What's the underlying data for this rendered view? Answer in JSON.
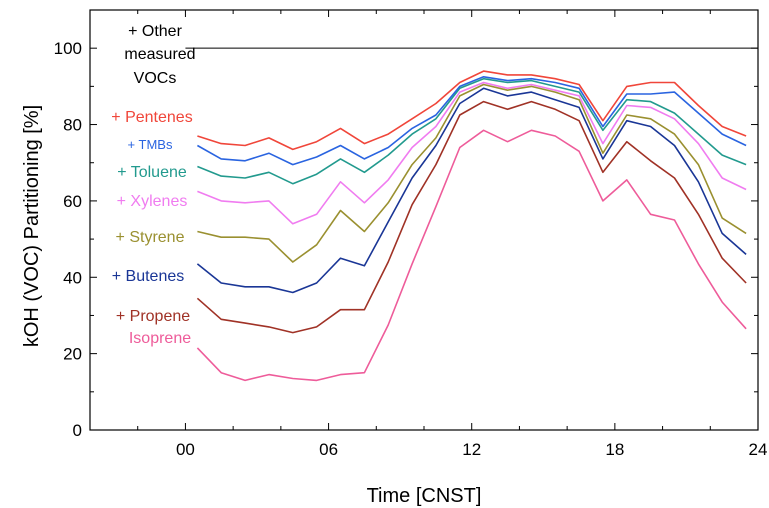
{
  "chart_data": {
    "type": "line",
    "xlabel": "Time [CNST]",
    "ylabel": "kOH (VOC) Partitioning [%]",
    "xlim": [
      -4,
      24
    ],
    "ylim": [
      0,
      110
    ],
    "xticks": [
      0,
      6,
      12,
      18,
      24
    ],
    "xtick_labels": [
      "00",
      "06",
      "12",
      "18",
      "24"
    ],
    "yticks": [
      0,
      20,
      40,
      60,
      80,
      100
    ],
    "ytick_labels": [
      "0",
      "20",
      "40",
      "60",
      "80",
      "100"
    ],
    "x": [
      0.5,
      1.5,
      2.5,
      3.5,
      4.5,
      5.5,
      6.5,
      7.5,
      8.5,
      9.5,
      10.5,
      11.5,
      12.5,
      13.5,
      14.5,
      15.5,
      16.5,
      17.5,
      18.5,
      19.5,
      20.5,
      21.5,
      22.5,
      23.5
    ],
    "reference_line": {
      "y": 100,
      "x_start": 0.0,
      "label_lines": [
        "+ Other",
        "measured",
        "VOCs"
      ]
    },
    "series": [
      {
        "name": "Isoprene",
        "label": "Isoprene",
        "color": "#ee5c9a",
        "values": [
          21.5,
          15.0,
          13.0,
          14.5,
          13.5,
          13.0,
          14.5,
          15.0,
          27.5,
          43.5,
          58.5,
          74.0,
          78.5,
          75.5,
          78.5,
          77.0,
          73.0,
          60.0,
          65.5,
          56.5,
          55.0,
          43.5,
          33.5,
          26.5
        ]
      },
      {
        "name": "Propene",
        "label": "+ Propene",
        "color": "#a03226",
        "values": [
          34.5,
          29.0,
          28.0,
          27.0,
          25.5,
          27.0,
          31.5,
          31.5,
          44.0,
          59.0,
          69.5,
          82.5,
          86.0,
          84.0,
          86.0,
          84.0,
          81.0,
          67.5,
          75.5,
          70.5,
          66.0,
          56.5,
          45.0,
          38.5
        ]
      },
      {
        "name": "Butenes",
        "label": "+ Butenes",
        "color": "#1a3696",
        "values": [
          43.5,
          38.5,
          37.5,
          37.5,
          36.0,
          38.5,
          45.0,
          43.0,
          54.5,
          66.0,
          74.5,
          85.5,
          89.5,
          87.5,
          88.5,
          86.5,
          84.5,
          71.0,
          81.0,
          79.5,
          74.5,
          65.0,
          51.5,
          46.0
        ]
      },
      {
        "name": "Styrene",
        "label": "+ Styrene",
        "color": "#9a9030",
        "values": [
          52.0,
          50.5,
          50.5,
          50.0,
          44.0,
          48.5,
          57.5,
          52.0,
          59.5,
          69.5,
          76.5,
          87.5,
          90.5,
          89.0,
          90.0,
          88.5,
          86.5,
          72.5,
          82.5,
          81.5,
          77.5,
          69.5,
          55.5,
          51.5
        ]
      },
      {
        "name": "Xylenes",
        "label": "+ Xylenes",
        "color": "#f07cf0",
        "values": [
          62.5,
          60.0,
          59.5,
          60.0,
          54.0,
          56.5,
          65.0,
          59.5,
          65.5,
          74.0,
          79.5,
          88.5,
          91.0,
          89.5,
          90.5,
          89.0,
          87.5,
          75.0,
          85.0,
          84.5,
          81.5,
          75.0,
          66.0,
          63.0
        ]
      },
      {
        "name": "Toluene",
        "label": "+ Toluene",
        "color": "#229a8e",
        "values": [
          69.0,
          66.5,
          66.0,
          67.5,
          64.5,
          67.0,
          71.0,
          67.5,
          72.0,
          77.5,
          81.5,
          89.5,
          92.0,
          91.0,
          91.5,
          90.0,
          88.5,
          78.5,
          86.5,
          86.0,
          83.0,
          77.5,
          72.0,
          69.5
        ]
      },
      {
        "name": "TMBs",
        "label": "+ TMBs",
        "color": "#2a64e0",
        "values": [
          74.5,
          71.0,
          70.5,
          72.5,
          69.5,
          71.5,
          74.5,
          71.0,
          74.0,
          79.0,
          82.5,
          90.0,
          92.5,
          91.5,
          92.0,
          91.0,
          89.5,
          79.5,
          88.0,
          88.0,
          88.5,
          83.0,
          77.5,
          74.5
        ]
      },
      {
        "name": "Pentenes",
        "label": "+ Pentenes",
        "color": "#f0463a",
        "values": [
          77.0,
          75.0,
          74.5,
          76.5,
          73.5,
          75.5,
          79.0,
          75.0,
          77.5,
          81.5,
          85.5,
          91.0,
          94.0,
          93.0,
          93.0,
          92.0,
          90.5,
          81.0,
          90.0,
          91.0,
          91.0,
          85.0,
          79.5,
          77.0
        ]
      }
    ]
  }
}
